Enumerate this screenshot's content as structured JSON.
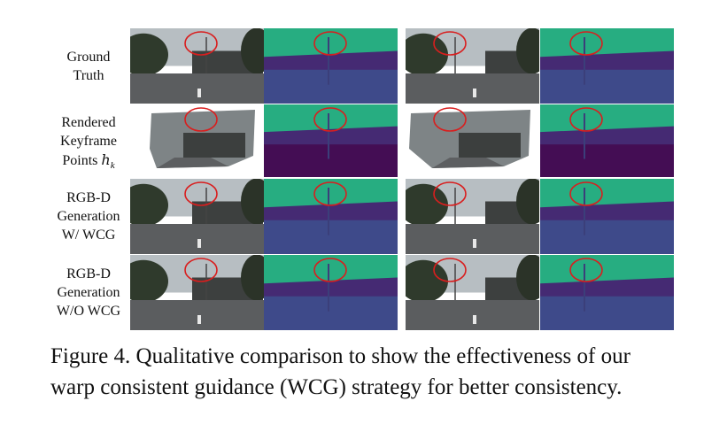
{
  "rows": [
    {
      "label_lines": [
        "Ground",
        "Truth"
      ]
    },
    {
      "label_lines": [
        "Rendered",
        "Keyframe",
        "Points"
      ],
      "math": {
        "symbol": "h",
        "subscript": "k"
      }
    },
    {
      "label_lines": [
        "RGB-D",
        "Generation",
        "W/ WCG"
      ]
    },
    {
      "label_lines": [
        "RGB-D",
        "Generation",
        "W/O WCG"
      ]
    }
  ],
  "caption": {
    "lines": [
      "Figure 4. Qualitative comparison to show the effectiveness of our",
      "warp consistent guidance (WCG) strategy for better consistency."
    ]
  }
}
